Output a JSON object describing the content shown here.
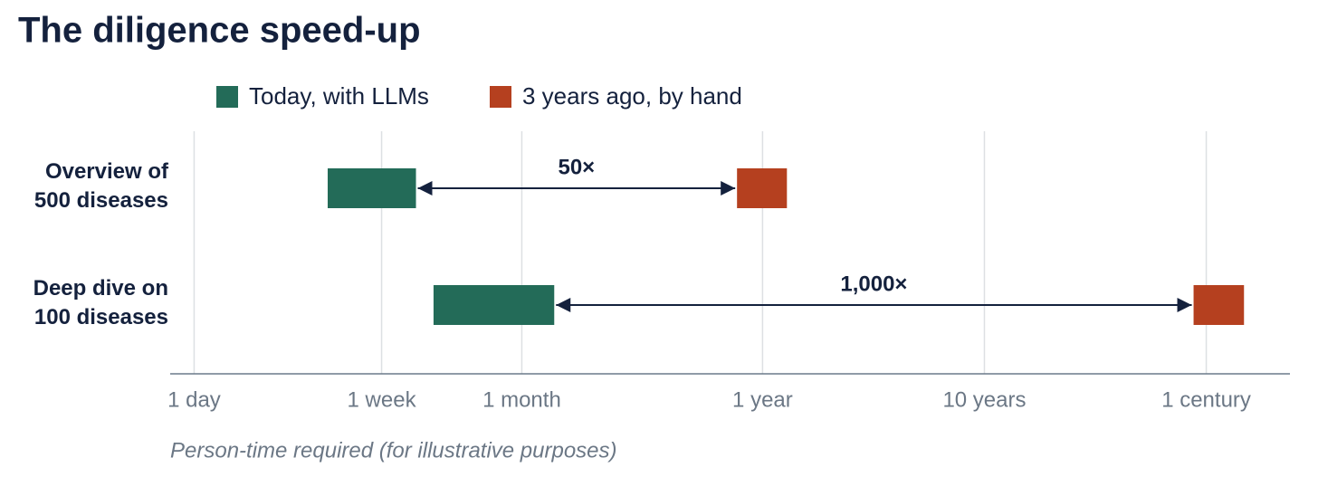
{
  "chart_data": {
    "type": "bar",
    "orientation": "horizontal",
    "title": "The diligence speed-up",
    "x_label": "Person-time required (for illustrative purposes)",
    "categories": [
      "Overview of 500 diseases",
      "Deep dive on 100 diseases"
    ],
    "series": [
      {
        "name": "Today, with LLMs",
        "color": "#236b58",
        "values": [
          [
            4,
            10
          ],
          [
            12,
            42
          ]
        ]
      },
      {
        "name": "3 years ago, by hand",
        "color": "#b5401f",
        "values": [
          [
            280,
            470
          ],
          [
            32000,
            54000
          ]
        ]
      }
    ],
    "annotations": [
      "50×",
      "1,000×"
    ],
    "xscale": "log",
    "xlim": [
      0.78,
      87000
    ],
    "xticks": [
      {
        "value": 1,
        "label": "1 day"
      },
      {
        "value": 7,
        "label": "1 week"
      },
      {
        "value": 30,
        "label": "1 month"
      },
      {
        "value": 365,
        "label": "1 year"
      },
      {
        "value": 3650,
        "label": "10 years"
      },
      {
        "value": 36500,
        "label": "1 century"
      }
    ],
    "grid": true,
    "legend": "top"
  }
}
